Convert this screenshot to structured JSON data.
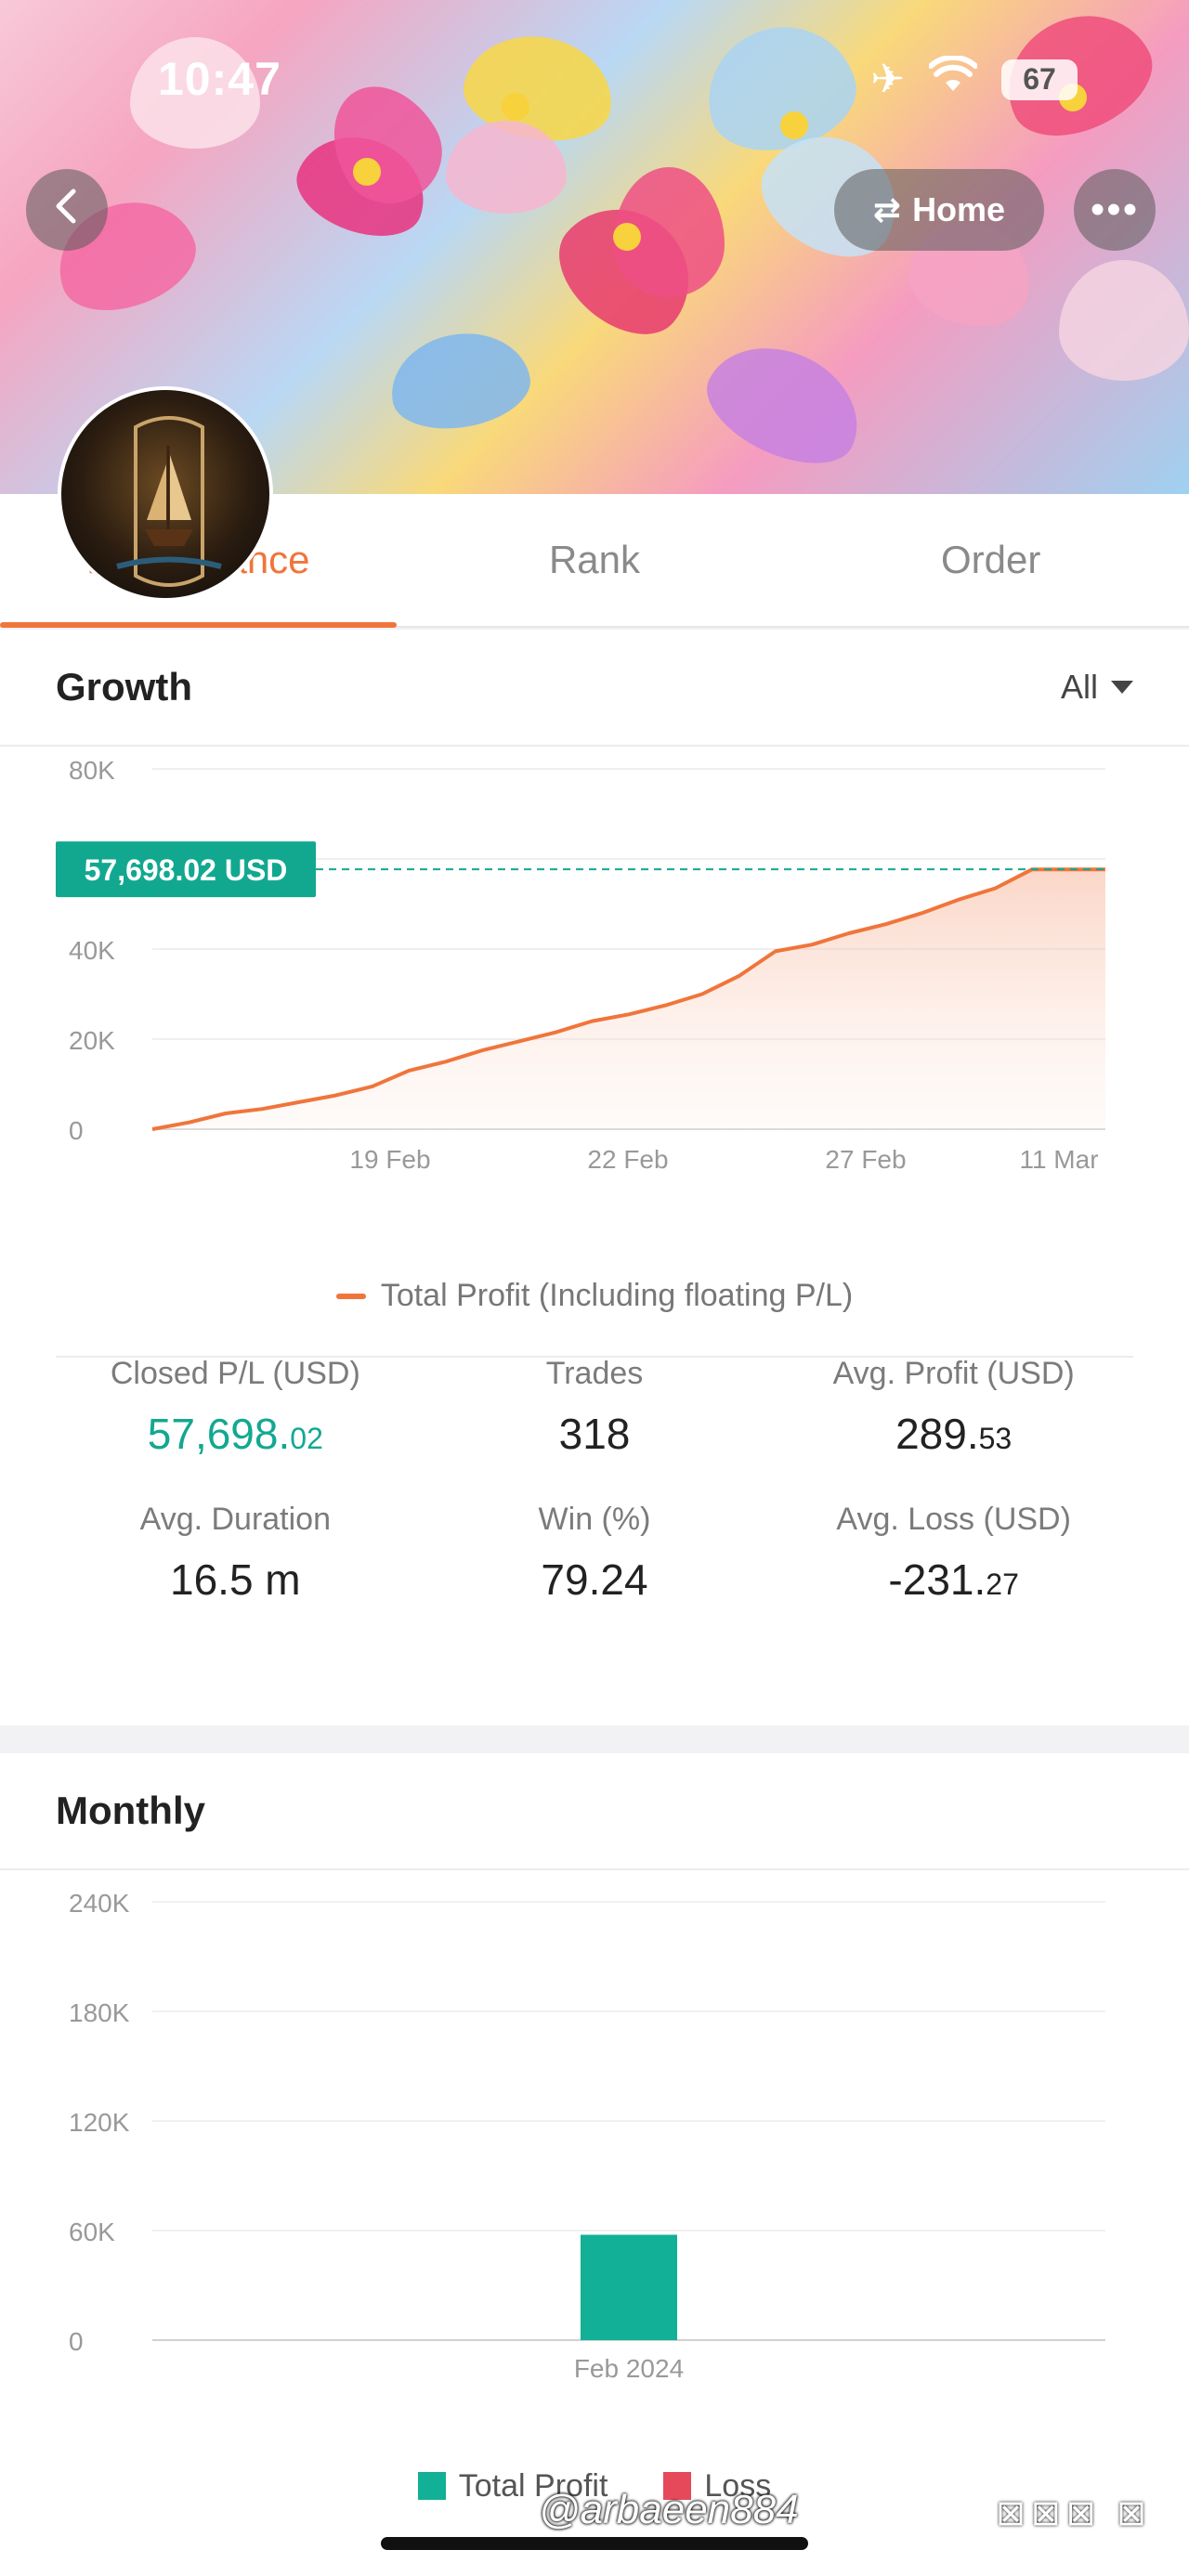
{
  "status_bar": {
    "time": "10:47",
    "battery": "67"
  },
  "header": {
    "home_label": "Home",
    "back_icon": "chevron-left-icon",
    "more_icon": "ellipsis-icon",
    "swap_icon": "swap-arrows-icon"
  },
  "tabs": [
    {
      "label": "Performance",
      "active": true
    },
    {
      "label": "Rank",
      "active": false
    },
    {
      "label": "Order",
      "active": false
    }
  ],
  "growth": {
    "title": "Growth",
    "filter": "All",
    "current_value_label": "57,698.02 USD",
    "legend": "Total Profit (Including floating P/L)",
    "chart_data": {
      "type": "area",
      "y_ticks": [
        "80K",
        "40K",
        "20K",
        "0"
      ],
      "x_ticks": [
        "19 Feb",
        "22 Feb",
        "27 Feb",
        "11 Mar"
      ],
      "ylim": [
        0,
        80000
      ],
      "series": [
        {
          "name": "Total Profit (Including floating P/L)",
          "values": [
            0,
            1500,
            3500,
            4500,
            6000,
            7500,
            9500,
            13000,
            15000,
            17500,
            19500,
            21500,
            24000,
            25500,
            27500,
            30000,
            34000,
            39500,
            41000,
            43500,
            45500,
            48000,
            51000,
            53500,
            57698.02,
            57698.02,
            57698.02
          ]
        }
      ],
      "current_value": 57698.02
    },
    "stats": [
      {
        "label": "Closed P/L (USD)",
        "value_main": "57,698.",
        "value_small": "02",
        "green": true
      },
      {
        "label": "Trades",
        "value_main": "318",
        "value_small": ""
      },
      {
        "label": "Avg. Profit (USD)",
        "value_main": "289.",
        "value_small": "53"
      },
      {
        "label": "Avg. Duration",
        "value_main": "16.5 m",
        "value_small": ""
      },
      {
        "label": "Win (%)",
        "value_main": "79.24",
        "value_small": ""
      },
      {
        "label": "Avg. Loss (USD)",
        "value_main": "-231.",
        "value_small": "27"
      }
    ]
  },
  "monthly": {
    "title": "Monthly",
    "legend_profit": "Total Profit",
    "legend_loss": "Loss",
    "colors": {
      "profit": "#12b096",
      "loss": "#e6495a"
    },
    "chart_data": {
      "type": "bar",
      "y_ticks": [
        "240K",
        "180K",
        "120K",
        "60K",
        "0"
      ],
      "categories": [
        "Feb 2024"
      ],
      "values": [
        57698.02
      ],
      "ylim": [
        0,
        240000
      ]
    }
  },
  "watermark": {
    "handle": "@arbaeen884",
    "symbols": "⊠⊠⊠ ⊠"
  }
}
